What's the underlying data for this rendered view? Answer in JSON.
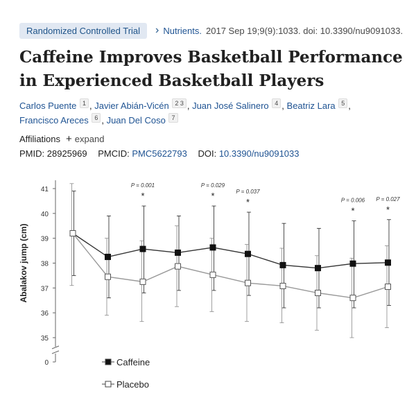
{
  "header": {
    "badge": "Randomized Controlled Trial",
    "journal": "Nutrients.",
    "citation": "2017 Sep 19;9(9):1033. doi: 10.3390/nu9091033."
  },
  "article": {
    "title": "Caffeine Improves Basketball Performance in Experienced Basketball Players",
    "authors": [
      {
        "name": "Carlos Puente",
        "affil": "1"
      },
      {
        "name": "Javier Abián-Vicén",
        "affil": "2 3"
      },
      {
        "name": "Juan José Salinero",
        "affil": "4"
      },
      {
        "name": "Beatriz Lara",
        "affil": "5"
      },
      {
        "name": "Francisco Areces",
        "affil": "6"
      },
      {
        "name": "Juan Del Coso",
        "affil": "7"
      }
    ],
    "affiliations_label": "Affiliations",
    "expand_label": "expand",
    "pmid_label": "PMID:",
    "pmid": "28925969",
    "pmcid_label": "PMCID:",
    "pmcid": "PMC5622793",
    "doi_label": "DOI:",
    "doi": "10.3390/nu9091033"
  },
  "chart_data": {
    "type": "line",
    "title": "",
    "xlabel": "",
    "ylabel": "Abalakov jump (cm)",
    "yticks": [
      "0",
      "35",
      "36",
      "37",
      "38",
      "39",
      "40",
      "41"
    ],
    "ylim": [
      35,
      41.3
    ],
    "axis_break": true,
    "n_points": 10,
    "series": [
      {
        "name": "Caffeine",
        "marker": "filled-square",
        "values": [
          39.2,
          38.25,
          38.57,
          38.42,
          38.63,
          38.37,
          37.92,
          37.8,
          37.98,
          38.02
        ],
        "err_upper": [
          40.9,
          39.9,
          40.3,
          39.9,
          40.3,
          40.05,
          39.6,
          39.4,
          39.7,
          39.75
        ],
        "err_lower": [
          37.5,
          36.6,
          36.8,
          36.9,
          36.9,
          36.7,
          36.2,
          36.2,
          36.2,
          36.3
        ]
      },
      {
        "name": "Placebo",
        "marker": "open-square",
        "values": [
          39.2,
          37.45,
          37.25,
          37.87,
          37.53,
          37.2,
          37.08,
          36.8,
          36.6,
          37.05
        ],
        "err_upper": [
          41.2,
          39.0,
          38.9,
          39.5,
          39.0,
          38.75,
          38.6,
          38.3,
          38.2,
          38.7
        ],
        "err_lower": [
          37.1,
          35.9,
          35.65,
          36.25,
          36.05,
          35.65,
          35.6,
          35.3,
          35.0,
          35.4
        ]
      }
    ],
    "annotations": [
      {
        "index": 2,
        "label": "P = 0.001"
      },
      {
        "index": 4,
        "label": "P = 0.029"
      },
      {
        "index": 5,
        "label": "P = 0.037"
      },
      {
        "index": 8,
        "label": "P = 0.006"
      },
      {
        "index": 9,
        "label": "P = 0.027"
      }
    ],
    "legend_position": "bottom-left"
  }
}
